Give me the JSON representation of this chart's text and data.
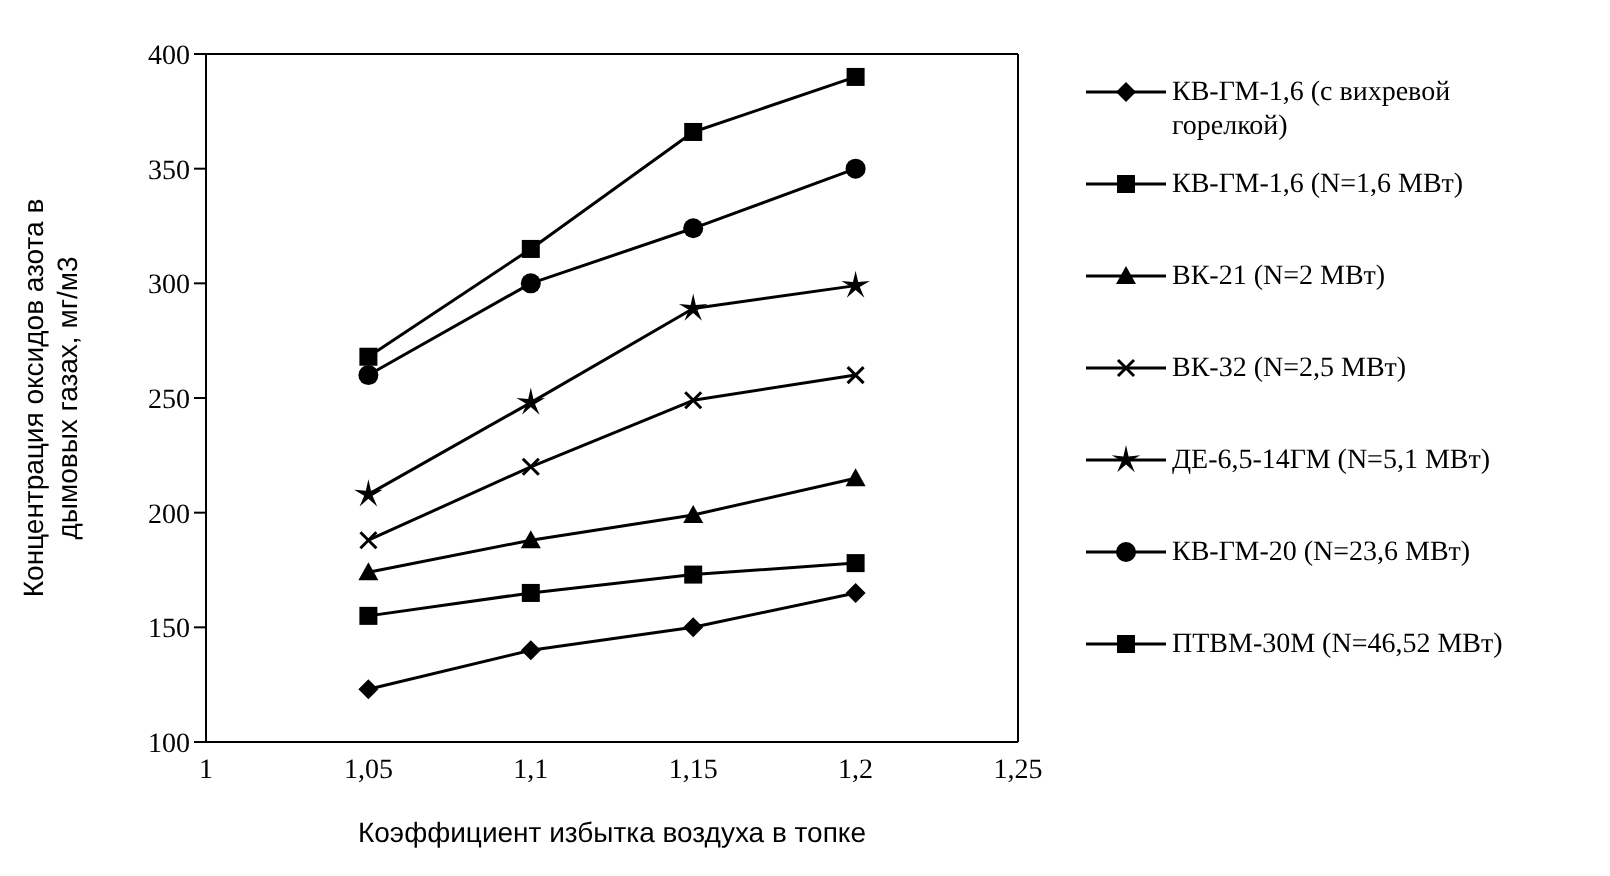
{
  "chart_data": {
    "type": "line",
    "xlabel": "Коэффициент избытка воздуха в топке",
    "ylabel": "Концентрация оксидов азота в дымовых газах, мг/м3",
    "x": [
      1.05,
      1.1,
      1.15,
      1.2
    ],
    "xlim": [
      1,
      1.25
    ],
    "xticks": [
      1,
      {
        "value": 1.05,
        "label": "1,05"
      },
      {
        "value": 1.1,
        "label": "1,1"
      },
      {
        "value": 1.15,
        "label": "1,15"
      },
      {
        "value": 1.2,
        "label": "1,2"
      },
      {
        "value": 1.25,
        "label": "1,25"
      }
    ],
    "ylim": [
      100,
      400
    ],
    "yticks": [
      100,
      150,
      200,
      250,
      300,
      350,
      400
    ],
    "grid": false,
    "legend": "right",
    "line_style": "solid",
    "series": [
      {
        "name": "КВ-ГМ-1,6 (с вихревой горелкой)",
        "color": "#000000",
        "marker": "diamond",
        "values": [
          123,
          140,
          150,
          165
        ]
      },
      {
        "name": "КВ-ГМ-1,6 (N=1,6 МВт)",
        "color": "#000000",
        "marker": "square",
        "values": [
          155,
          165,
          173,
          178
        ]
      },
      {
        "name": "ВК-21 (N=2 МВт)",
        "color": "#000000",
        "marker": "triangle",
        "values": [
          174,
          188,
          199,
          215
        ]
      },
      {
        "name": "ВК-32 (N=2,5 МВт)",
        "color": "#000000",
        "marker": "cross",
        "values": [
          188,
          220,
          249,
          260
        ]
      },
      {
        "name": "ДЕ-6,5-14ГМ (N=5,1 МВт)",
        "color": "#000000",
        "marker": "star",
        "values": [
          208,
          248,
          289,
          299
        ]
      },
      {
        "name": "КВ-ГМ-20 (N=23,6 МВт)",
        "color": "#000000",
        "marker": "circle",
        "values": [
          260,
          300,
          324,
          350
        ]
      },
      {
        "name": "ПТВМ-30М (N=46,52 МВт)",
        "color": "#000000",
        "marker": "square",
        "values": [
          268,
          315,
          366,
          390
        ]
      }
    ]
  }
}
